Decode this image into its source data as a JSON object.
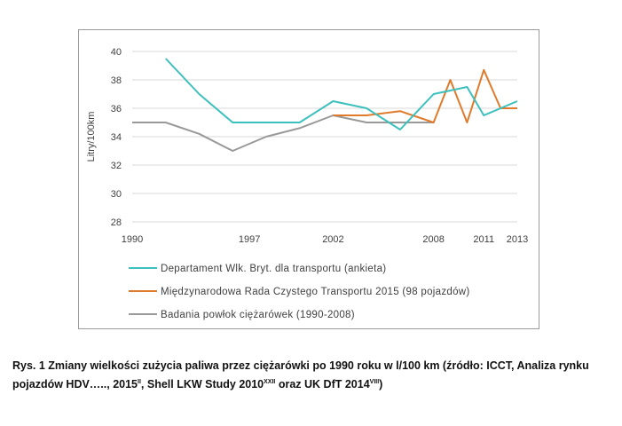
{
  "chart_data": {
    "type": "line",
    "ylabel": "Litry/100km",
    "ylim": [
      28,
      40
    ],
    "yticks": [
      28,
      30,
      32,
      34,
      36,
      38,
      40
    ],
    "xlim": [
      1990,
      2013
    ],
    "xtick_labels": [
      "1990",
      "1997",
      "2002",
      "2008",
      "2011",
      "2013"
    ],
    "xtick_values": [
      1990,
      1997,
      2002,
      2008,
      2011,
      2013
    ],
    "grid": true,
    "legend_position": "bottom",
    "series": [
      {
        "name": "Departament Wlk. Bryt. dla transportu (ankieta)",
        "color": "#3cc0bd",
        "x": [
          1992,
          1994,
          1996,
          1998,
          2000,
          2002,
          2004,
          2006,
          2008,
          2010,
          2011,
          2013
        ],
        "values": [
          39.5,
          37.0,
          35.0,
          35.0,
          35.0,
          36.5,
          36.0,
          34.5,
          37.0,
          37.5,
          35.5,
          36.5
        ]
      },
      {
        "name": "Międzynarodowa Rada Czystego Transportu 2015 (98 pojazdów)",
        "color": "#e07a2c",
        "x": [
          2002,
          2004,
          2006,
          2008,
          2009,
          2010,
          2011,
          2012,
          2013
        ],
        "values": [
          35.5,
          35.5,
          35.8,
          35.0,
          38.0,
          35.0,
          38.7,
          36.0,
          36.0
        ]
      },
      {
        "name": "Badania powłok ciężarówek (1990-2008)",
        "color": "#999999",
        "x": [
          1990,
          1992,
          1994,
          1996,
          1998,
          2000,
          2002,
          2004,
          2006,
          2008
        ],
        "values": [
          35.0,
          35.0,
          34.2,
          33.0,
          34.0,
          34.6,
          35.5,
          35.0,
          35.0,
          35.0
        ]
      }
    ]
  },
  "caption": {
    "part1": "Rys. 1 Zmiany wielkości zużycia paliwa przez ciężarówki po 1990 roku w l/100 km (źródło:  ICCT, Analiza rynku pojazdów HDV….., 2015",
    "sup1": "II",
    "part2": ", Shell LKW Study 2010",
    "sup2": "XXII",
    "part3": " oraz UK DfT 2014",
    "sup3": "VIII",
    "part4": ")"
  }
}
